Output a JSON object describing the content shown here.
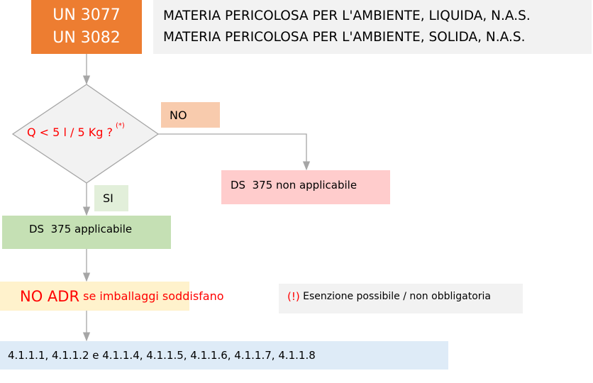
{
  "colors": {
    "un_box": "#ED7D31",
    "title_box": "#F2F2F2",
    "no_label": "#F8CBAD",
    "si_label": "#E2EFDA",
    "not_applicable": "#FFCCCC",
    "applicable": "#C5E0B4",
    "no_adr": "#FFF2CC",
    "note": "#F2F2F2",
    "references": "#DEEBF7",
    "connector": "#A6A6A6",
    "alert_text": "#FF0000"
  },
  "un_numbers": [
    "UN 3077",
    "UN 3082"
  ],
  "titles": [
    "MATERIA PERICOLOSA PER L'AMBIENTE, LIQUIDA, N.A.S.",
    "MATERIA PERICOLOSA PER L'AMBIENTE, SOLIDA, N.A.S."
  ],
  "decision": {
    "question": "Q < 5 l / 5 Kg ?",
    "footnote_mark": "(*)"
  },
  "branch_no": {
    "label": "NO",
    "result": "DS  375 non applicabile"
  },
  "branch_si": {
    "label": "SI",
    "result": "DS  375 applicabile"
  },
  "no_adr": {
    "strong": "NO ADR",
    "rest": " se imballaggi soddisfano"
  },
  "note": {
    "mark": "(!)",
    "text": " Esenzione possibile / non obbligatoria"
  },
  "references": "4.1.1.1, 4.1.1.2 e 4.1.1.4, 4.1.1.5, 4.1.1.6, 4.1.1.7, 4.1.1.8"
}
